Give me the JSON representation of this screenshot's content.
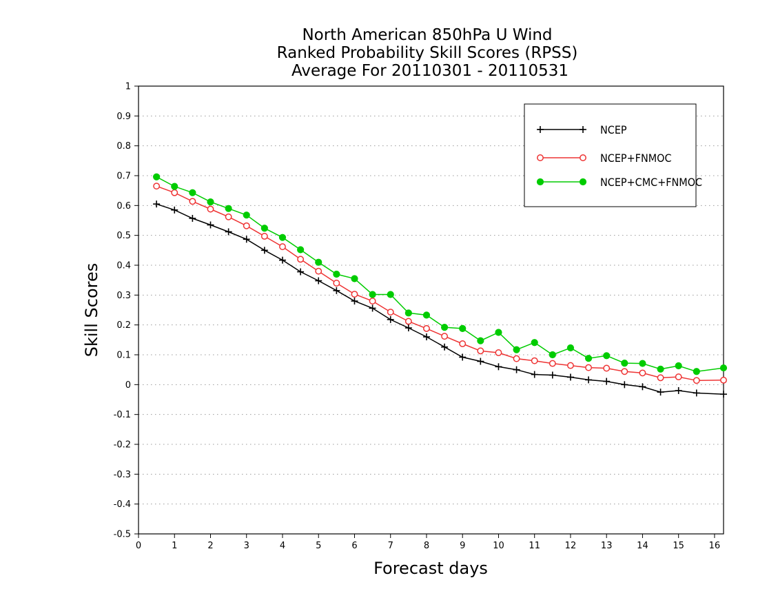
{
  "chart_data": {
    "type": "line",
    "title_lines": [
      "North American 850hPa U Wind",
      "Ranked Probability Skill Scores (RPSS)",
      "Average For 20110301 - 20110531"
    ],
    "xlabel": "Forecast days",
    "ylabel": "Skill Scores",
    "xlim": [
      0,
      16.25
    ],
    "ylim": [
      -0.5,
      1
    ],
    "xticks": [
      "0",
      "1",
      "2",
      "3",
      "4",
      "5",
      "6",
      "7",
      "8",
      "9",
      "10",
      "11",
      "12",
      "13",
      "14",
      "15",
      "16"
    ],
    "yticks": [
      "-0.5",
      "-0.4",
      "-0.3",
      "-0.2",
      "-0.1",
      "0",
      "0.1",
      "0.2",
      "0.3",
      "0.4",
      "0.5",
      "0.6",
      "0.7",
      "0.8",
      "0.9",
      "1"
    ],
    "grid": "horizontal dotted",
    "legend_position": "top-right",
    "x": [
      0.5,
      1,
      1.5,
      2,
      2.5,
      3,
      3.5,
      4,
      4.5,
      5,
      5.5,
      6,
      6.5,
      7,
      7.5,
      8,
      8.5,
      9,
      9.5,
      10,
      10.5,
      11,
      11.5,
      12,
      12.5,
      13,
      13.5,
      14,
      14.5,
      15,
      15.5,
      16.25
    ],
    "series": [
      {
        "name": "NCEP",
        "color": "#000000",
        "marker": "plus",
        "values": [
          0.605,
          0.585,
          0.557,
          0.535,
          0.512,
          0.487,
          0.45,
          0.417,
          0.378,
          0.348,
          0.315,
          0.28,
          0.256,
          0.218,
          0.19,
          0.16,
          0.126,
          0.092,
          0.078,
          0.06,
          0.05,
          0.034,
          0.032,
          0.025,
          0.016,
          0.011,
          0.0,
          -0.007,
          -0.025,
          -0.02,
          -0.028,
          -0.032
        ]
      },
      {
        "name": "NCEP+FNMOC",
        "color": "#ee3333",
        "marker": "open-circle",
        "values": [
          0.665,
          0.643,
          0.614,
          0.588,
          0.562,
          0.532,
          0.497,
          0.462,
          0.42,
          0.38,
          0.34,
          0.303,
          0.28,
          0.243,
          0.212,
          0.188,
          0.162,
          0.137,
          0.113,
          0.107,
          0.087,
          0.08,
          0.071,
          0.064,
          0.057,
          0.055,
          0.044,
          0.039,
          0.023,
          0.026,
          0.014,
          0.015
        ]
      },
      {
        "name": "NCEP+CMC+FNMOC",
        "color": "#00cc00",
        "marker": "filled-circle",
        "values": [
          0.696,
          0.664,
          0.643,
          0.612,
          0.59,
          0.568,
          0.524,
          0.493,
          0.452,
          0.41,
          0.37,
          0.355,
          0.302,
          0.302,
          0.24,
          0.233,
          0.192,
          0.188,
          0.147,
          0.175,
          0.117,
          0.141,
          0.1,
          0.123,
          0.088,
          0.097,
          0.072,
          0.071,
          0.052,
          0.063,
          0.044,
          0.056
        ]
      }
    ]
  }
}
